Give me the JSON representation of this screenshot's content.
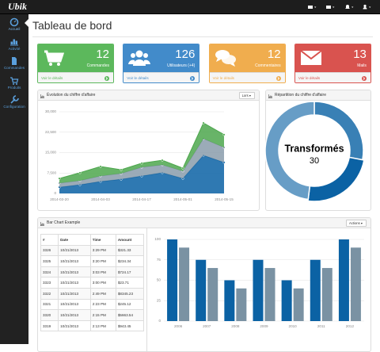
{
  "topbar": {
    "brand": "Ubik"
  },
  "sidebar": {
    "items": [
      "Accueil",
      "Activité",
      "Commandes",
      "Produits",
      "Configuration"
    ]
  },
  "page_title": "Tableau de bord",
  "stats": [
    {
      "value": 12,
      "label": "Commandes",
      "link": "Voir le détails",
      "color": "#5cb85c"
    },
    {
      "value": 126,
      "label": "Utilisateurs (+4)",
      "link": "Voir le détails",
      "color": "#428bca"
    },
    {
      "value": 12,
      "label": "Commentaires",
      "link": "Voir le détails",
      "color": "#f0ad4e"
    },
    {
      "value": 13,
      "label": "Mails",
      "link": "Voir le détails",
      "color": "#d9534f"
    }
  ],
  "panel_menus": [
    "Lors",
    "Actions"
  ],
  "chart_data": [
    {
      "type": "area",
      "title": "Évolution du chiffre d'affaire",
      "x": [
        "2014-03-20",
        "2014-03-27",
        "2014-04-03",
        "2014-04-10",
        "2014-04-17",
        "2014-04-24",
        "2014-05-01",
        "2014-05-08",
        "2014-05-15"
      ],
      "xlim": [
        "2014-03-20",
        "2014-05-15"
      ],
      "xticks": [
        "2014-03-20",
        "2014-04-03",
        "2014-04-17",
        "2014-05-01",
        "2014-05-15"
      ],
      "series": [
        {
          "color": "#0b62a4",
          "values": [
            2300,
            3200,
            4400,
            5200,
            6400,
            7600,
            5500,
            14000,
            11400
          ]
        },
        {
          "color": "#8a9cab",
          "values": [
            1500,
            1500,
            2000,
            2100,
            3200,
            2900,
            2700,
            6100,
            5500
          ]
        },
        {
          "color": "#4da74d",
          "values": [
            1700,
            2900,
            3500,
            1400,
            1500,
            1700,
            1100,
            5800,
            4700
          ]
        }
      ],
      "stacked": true,
      "ylim": [
        0,
        30000
      ],
      "yticks": [
        0,
        {
          "value": 7500,
          "label": "7,500"
        },
        {
          "value": 15000,
          "label": "15,000"
        },
        {
          "value": 22500,
          "label": "22,500"
        },
        {
          "value": 30000,
          "label": "30,000"
        }
      ],
      "grid": true
    },
    {
      "type": "donut",
      "title": "Répartition du chiffre d'affaire",
      "categories": [
        null,
        "Transformés",
        null
      ],
      "values": [
        35,
        30,
        60
      ],
      "colors": [
        "#3980b5",
        "#0b62a4",
        "#679dc6"
      ],
      "selected": 1
    },
    {
      "type": "bar",
      "title": "Bar Chart Example",
      "categories": [
        "2006",
        "2007",
        "2008",
        "2009",
        "2010",
        "2011",
        "2012"
      ],
      "series": [
        {
          "color": "#0b62a4",
          "values": [
            100,
            75,
            50,
            75,
            50,
            75,
            100
          ]
        },
        {
          "color": "#7a92a3",
          "values": [
            90,
            65,
            40,
            65,
            40,
            65,
            90
          ]
        }
      ],
      "ylim": [
        0,
        100
      ],
      "yticks": [
        0,
        25,
        50,
        75,
        100
      ],
      "grid": true
    }
  ],
  "table": {
    "headers": [
      "#",
      "Date",
      "Time",
      "Amount"
    ],
    "rows": [
      [
        "3326",
        "10/21/2013",
        "3:29 PM",
        "$321.33"
      ],
      [
        "3325",
        "10/21/2013",
        "3:20 PM",
        "$234.34"
      ],
      [
        "3324",
        "10/21/2013",
        "3:03 PM",
        "$724.17"
      ],
      [
        "3323",
        "10/21/2013",
        "3:00 PM",
        "$23.71"
      ],
      [
        "3322",
        "10/21/2013",
        "2:49 PM",
        "$8345.23"
      ],
      [
        "3321",
        "10/21/2013",
        "2:23 PM",
        "$245.12"
      ],
      [
        "3320",
        "10/21/2013",
        "2:15 PM",
        "$5663.54"
      ],
      [
        "3319",
        "10/21/2013",
        "2:13 PM",
        "$943.45"
      ]
    ]
  }
}
